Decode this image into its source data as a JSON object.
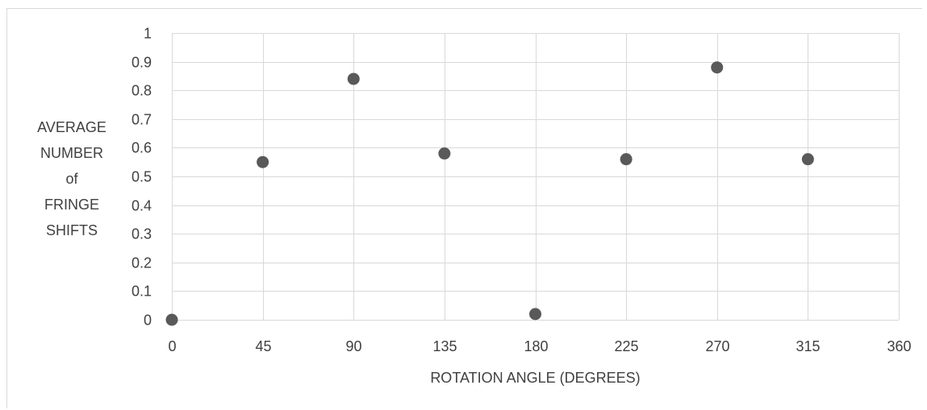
{
  "chart_data": {
    "type": "scatter",
    "title": "",
    "xlabel": "ROTATION ANGLE (DEGREES)",
    "ylabel_lines": [
      "AVERAGE",
      "NUMBER",
      "of",
      "FRINGE",
      "SHIFTS"
    ],
    "xlim": [
      0,
      360
    ],
    "ylim": [
      0,
      1
    ],
    "x_ticks": [
      0,
      45,
      90,
      135,
      180,
      225,
      270,
      315,
      360
    ],
    "x_tick_labels": [
      "0",
      "45",
      "90",
      "135",
      "180",
      "225",
      "270",
      "315",
      "360"
    ],
    "y_ticks": [
      0,
      0.1,
      0.2,
      0.3,
      0.4,
      0.5,
      0.6,
      0.7,
      0.8,
      0.9,
      1
    ],
    "y_tick_labels": [
      "0",
      "0.1",
      "0.2",
      "0.3",
      "0.4",
      "0.5",
      "0.6",
      "0.7",
      "0.8",
      "0.9",
      "1"
    ],
    "grid": true,
    "legend": "none",
    "marker_color": "#595959",
    "gridline_color": "#d9d9d9",
    "text_color": "#404040",
    "series": [
      {
        "x": [
          0,
          45,
          90,
          135,
          180,
          225,
          270,
          315
        ],
        "y": [
          0,
          0.55,
          0.84,
          0.58,
          0.02,
          0.56,
          0.88,
          0.56
        ]
      }
    ]
  }
}
